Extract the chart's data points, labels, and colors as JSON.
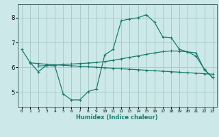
{
  "bg_color": "#cce8e8",
  "grid_color": "#aacccc",
  "line_color": "#1a7a6e",
  "xlabel": "Humidex (Indice chaleur)",
  "xlim": [
    -0.5,
    23.5
  ],
  "ylim": [
    4.4,
    8.55
  ],
  "yticks": [
    5,
    6,
    7,
    8
  ],
  "xticks": [
    0,
    1,
    2,
    3,
    4,
    5,
    6,
    7,
    8,
    9,
    10,
    11,
    12,
    13,
    14,
    15,
    16,
    17,
    18,
    19,
    20,
    21,
    22,
    23
  ],
  "line1_x": [
    0,
    1,
    2,
    3,
    4,
    5,
    6,
    7,
    8,
    9,
    10,
    11,
    12,
    13,
    14,
    15,
    16,
    17,
    18,
    19,
    20,
    21,
    22,
    23
  ],
  "line1_y": [
    6.72,
    6.2,
    5.82,
    6.08,
    6.05,
    4.92,
    4.68,
    4.68,
    5.02,
    5.12,
    6.5,
    6.72,
    7.88,
    7.95,
    8.0,
    8.12,
    7.82,
    7.22,
    7.2,
    6.72,
    6.62,
    6.45,
    5.92,
    5.58
  ],
  "line2_x": [
    1,
    2,
    3,
    4,
    5,
    6,
    7,
    8,
    9,
    10,
    11,
    12,
    13,
    14,
    15,
    16,
    17,
    18,
    19,
    20,
    21,
    22,
    23
  ],
  "line2_y": [
    6.18,
    6.15,
    6.12,
    6.1,
    6.08,
    6.06,
    6.04,
    6.02,
    6.0,
    5.98,
    5.96,
    5.94,
    5.92,
    5.9,
    5.88,
    5.86,
    5.84,
    5.82,
    5.8,
    5.78,
    5.76,
    5.74,
    5.72
  ],
  "line3_x": [
    2,
    3,
    4,
    5,
    6,
    7,
    8,
    9,
    10,
    11,
    12,
    13,
    14,
    15,
    16,
    17,
    18,
    19,
    20,
    21,
    22,
    23
  ],
  "line3_y": [
    6.05,
    6.07,
    6.09,
    6.11,
    6.13,
    6.15,
    6.17,
    6.19,
    6.23,
    6.28,
    6.34,
    6.4,
    6.46,
    6.52,
    6.58,
    6.63,
    6.66,
    6.65,
    6.62,
    6.58,
    5.9,
    5.58
  ]
}
